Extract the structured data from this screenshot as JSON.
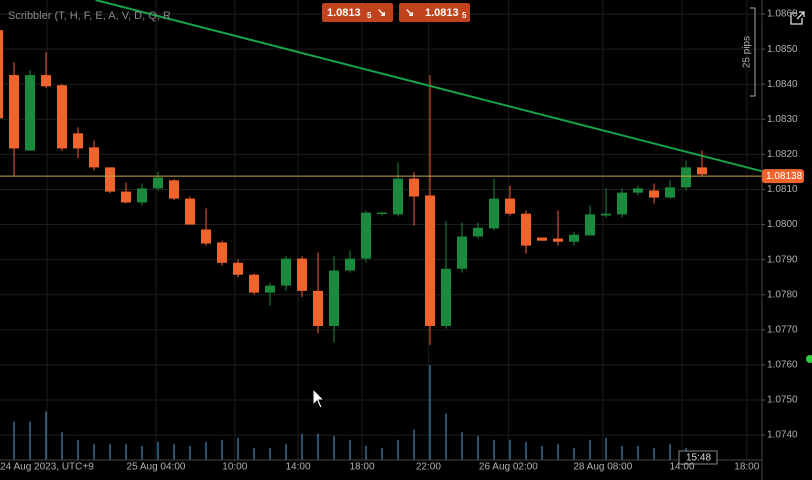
{
  "ui": {
    "toolbar": "Scribbler (T, H, F, E, A, V, D, Q, R",
    "sell_price": "1.0813",
    "sell_pip": "5",
    "buy_price": "1.0813",
    "buy_pip": "5",
    "pips_label": "25 pips",
    "time_label": "15:48"
  },
  "chart_data": {
    "type": "candlestick",
    "categories": [
      null,
      null,
      null,
      null,
      null,
      null,
      null,
      null,
      null,
      null,
      null,
      null,
      null,
      null,
      null,
      null,
      null,
      null,
      null,
      null,
      null,
      null,
      null,
      null,
      null,
      null,
      null,
      null,
      null,
      null,
      null,
      null,
      null,
      null,
      null,
      null,
      null,
      null,
      null,
      null,
      null,
      null,
      null,
      null,
      null
    ],
    "open": [
      1.08554,
      1.08426,
      1.08211,
      1.08426,
      1.08397,
      1.0826,
      1.0822,
      1.08163,
      1.08094,
      1.08063,
      1.08103,
      1.08126,
      1.08074,
      1.07986,
      1.07949,
      1.07891,
      1.07857,
      1.07806,
      1.07826,
      1.07903,
      1.07811,
      1.07711,
      1.07869,
      1.07903,
      1.0803,
      1.08029,
      1.08131,
      1.08083,
      1.07711,
      1.07874,
      1.07966,
      1.07989,
      1.08074,
      1.08031,
      1.07963,
      1.0796,
      1.07951,
      1.07969,
      1.08026,
      1.08029,
      1.08091,
      1.08097,
      1.08077,
      1.08106,
      1.08163
    ],
    "high": [
      1.0858,
      1.08463,
      1.0844,
      1.08491,
      1.084,
      1.08277,
      1.0824,
      1.08163,
      1.0812,
      1.08117,
      1.0815,
      1.0813,
      1.0808,
      1.08046,
      1.07954,
      1.079,
      1.0786,
      1.07834,
      1.07911,
      1.0791,
      1.0792,
      1.07911,
      1.07926,
      1.0804,
      1.08037,
      1.08177,
      1.08149,
      1.08426,
      1.0801,
      1.08006,
      1.08006,
      1.08131,
      1.08111,
      1.0804,
      1.07963,
      1.0804,
      1.0798,
      1.08054,
      1.08103,
      1.08103,
      1.0811,
      1.08117,
      1.08126,
      1.08183,
      1.08211
    ],
    "low": [
      1.0828,
      1.0814,
      1.0821,
      1.0839,
      1.0821,
      1.08189,
      1.08154,
      1.0809,
      1.0806,
      1.08054,
      1.08097,
      1.0807,
      1.08,
      1.0794,
      1.07883,
      1.0785,
      1.078,
      1.07769,
      1.07811,
      1.07794,
      1.0769,
      1.07663,
      1.07863,
      1.07891,
      1.08026,
      1.08023,
      1.07997,
      1.07657,
      1.07703,
      1.07863,
      1.0796,
      1.07983,
      1.08026,
      1.07917,
      1.07954,
      1.0794,
      1.0794,
      1.07969,
      1.0802,
      1.0802,
      1.08083,
      1.0806,
      1.08074,
      1.08097,
      1.08137
    ],
    "close": [
      1.08303,
      1.08217,
      1.08426,
      1.08394,
      1.08217,
      1.08217,
      1.08163,
      1.08094,
      1.08063,
      1.08103,
      1.08134,
      1.08074,
      1.08,
      1.07946,
      1.07891,
      1.07857,
      1.07806,
      1.07826,
      1.07903,
      1.07811,
      1.07711,
      1.07869,
      1.07903,
      1.08034,
      1.08034,
      1.08131,
      1.0808,
      1.07711,
      1.07874,
      1.07966,
      1.07991,
      1.08074,
      1.08031,
      1.0794,
      1.07954,
      1.07951,
      1.07971,
      1.08029,
      1.08031,
      1.08091,
      1.08103,
      1.08077,
      1.08106,
      1.08163,
      1.08143
    ],
    "volume": [
      20,
      38,
      38,
      48,
      28,
      20,
      16,
      16,
      16,
      14,
      18,
      16,
      14,
      18,
      20,
      22,
      12,
      12,
      16,
      26,
      26,
      24,
      20,
      14,
      12,
      20,
      30,
      94,
      46,
      28,
      24,
      20,
      20,
      18,
      14,
      16,
      12,
      20,
      22,
      14,
      14,
      12,
      16,
      12,
      8
    ],
    "up_color": "#1b8a3c",
    "down_color": "#f2642e",
    "volume_color": "#4aa3df",
    "price_line": 1.08138,
    "price_line_color": "#c9a646",
    "trendline": {
      "x": [
        6.1,
        48
      ],
      "y": [
        1.0864,
        1.08149
      ],
      "color": "#17a34a"
    },
    "xlim": [
      0.125,
      47.75
    ],
    "ylim": [
      1.07329,
      1.0864
    ],
    "xticks": [
      {
        "value": 3.06,
        "label": "24 Aug 2023, UTC+9"
      },
      {
        "value": 9.875,
        "label": "25 Aug 04:00"
      },
      {
        "value": 14.8,
        "label": "10:00"
      },
      {
        "value": 18.75,
        "label": "14:00"
      },
      {
        "value": 22.75,
        "label": "18:00"
      },
      {
        "value": 26.9,
        "label": "22:00"
      },
      {
        "value": 31.9,
        "label": "26 Aug 02:00"
      },
      {
        "value": 37.8,
        "label": "28 Aug 08:00"
      },
      {
        "value": 42.75,
        "label": "14:00"
      },
      {
        "value": 46.8,
        "label": "18:00"
      }
    ],
    "yticks": [
      {
        "value": 1.074,
        "label": "1.0740"
      },
      {
        "value": 1.075,
        "label": "1.0750"
      },
      {
        "value": 1.076,
        "label": "1.0760"
      },
      {
        "value": 1.077,
        "label": "1.0770"
      },
      {
        "value": 1.078,
        "label": "1.0780"
      },
      {
        "value": 1.079,
        "label": "1.0790"
      },
      {
        "value": 1.08,
        "label": "1.0800"
      },
      {
        "value": 1.081,
        "label": "1.0810"
      },
      {
        "value": 1.082,
        "label": "1.0820"
      },
      {
        "value": 1.083,
        "label": "1.0830"
      },
      {
        "value": 1.084,
        "label": "1.0840"
      },
      {
        "value": 1.085,
        "label": "1.0850"
      },
      {
        "value": 1.086,
        "label": "1.0860"
      }
    ],
    "grid": true
  }
}
